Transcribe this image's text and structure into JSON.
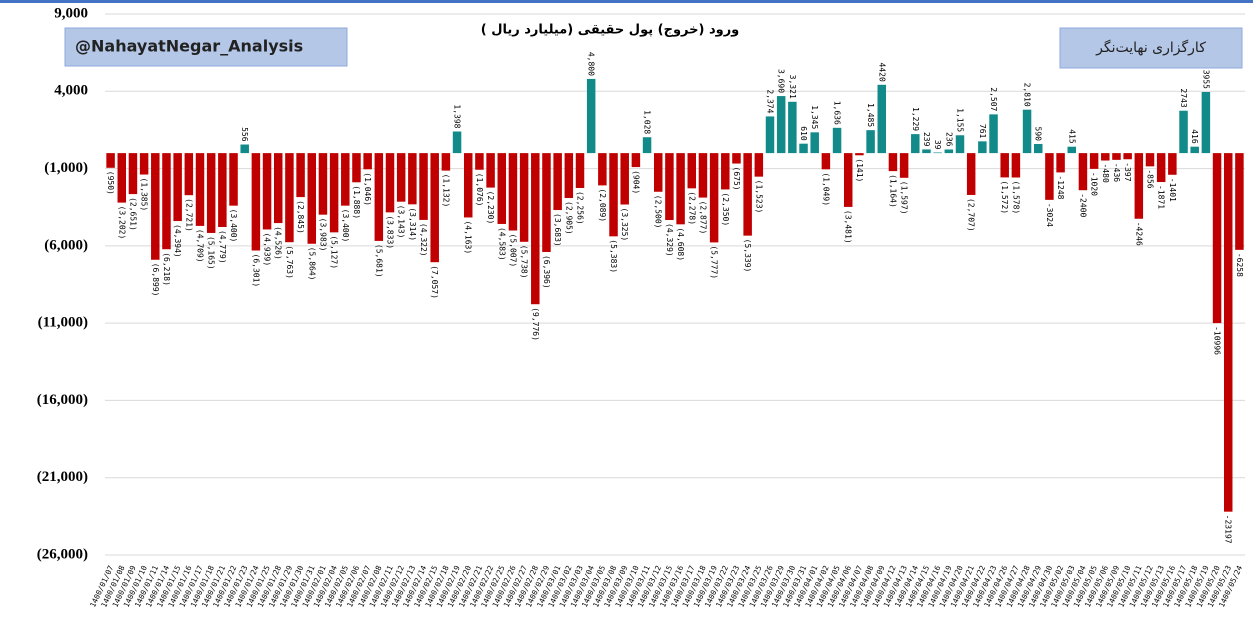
{
  "chart_data": {
    "type": "bar",
    "title": "ورود (خروج) پول حقیقی (میلیارد ریال )",
    "watermark_left": "@NahayatNegar_Analysis",
    "watermark_right": "کارگزاری نهایت‌نگر",
    "positive_color": "#138a8a",
    "negative_color": "#c00000",
    "grid": true,
    "ylim": [
      -26000,
      9000
    ],
    "yticks": [
      {
        "value": 9000,
        "label": "9,000"
      },
      {
        "value": 4000,
        "label": "4,000"
      },
      {
        "value": -1000,
        "label": "(1,000)"
      },
      {
        "value": -6000,
        "label": "(6,000)"
      },
      {
        "value": -11000,
        "label": "(11,000)"
      },
      {
        "value": -16000,
        "label": "(16,000)"
      },
      {
        "value": -21000,
        "label": "(21,000)"
      },
      {
        "value": -26000,
        "label": "(26,000)"
      }
    ],
    "categories": [
      "1400/01/07",
      "1400/01/08",
      "1400/01/09",
      "1400/01/10",
      "1400/01/11",
      "1400/01/14",
      "1400/01/15",
      "1400/01/16",
      "1400/01/17",
      "1400/01/18",
      "1400/01/21",
      "1400/01/22",
      "1400/01/23",
      "1400/01/24",
      "1400/01/25",
      "1400/01/28",
      "1400/01/29",
      "1400/01/30",
      "1400/01/31",
      "1400/02/01",
      "1400/02/04",
      "1400/02/05",
      "1400/02/06",
      "1400/02/07",
      "1400/02/08",
      "1400/02/11",
      "1400/02/12",
      "1400/02/13",
      "1400/02/14",
      "1400/02/15",
      "1400/02/18",
      "1400/02/19",
      "1400/02/20",
      "1400/02/21",
      "1400/02/22",
      "1400/02/25",
      "1400/02/26",
      "1400/02/27",
      "1400/02/28",
      "1400/02/29",
      "1400/03/01",
      "1400/03/02",
      "1400/03/03",
      "1400/03/04",
      "1400/03/05",
      "1400/03/08",
      "1400/03/09",
      "1400/03/10",
      "1400/03/11",
      "1400/03/12",
      "1400/03/15",
      "1400/03/16",
      "1400/03/17",
      "1400/03/18",
      "1400/03/19",
      "1400/03/22",
      "1400/03/23",
      "1400/03/24",
      "1400/03/25",
      "1400/03/26",
      "1400/03/29",
      "1400/03/30",
      "1400/03/31",
      "1400/04/01",
      "1400/04/02",
      "1400/04/05",
      "1400/04/06",
      "1400/04/07",
      "1400/04/08",
      "1400/04/09",
      "1400/04/12",
      "1400/04/13",
      "1400/04/14",
      "1400/04/15",
      "1400/04/16",
      "1400/04/19",
      "1400/04/20",
      "1400/04/21",
      "1400/04/22",
      "1400/04/23",
      "1400/04/26",
      "1400/04/27",
      "1400/04/28",
      "1400/04/29",
      "1400/04/30",
      "1400/05/02",
      "1400/05/03",
      "1400/05/04",
      "1400/05/05",
      "1400/05/06",
      "1400/05/09",
      "1400/05/10",
      "1400/05/11",
      "1400/05/12",
      "1400/05/13",
      "1400/05/16",
      "1400/05/17",
      "1400/05/18",
      "1400/05/19",
      "1400/05/20",
      "1400/05/23",
      "1400/05/24"
    ],
    "values": [
      -950,
      -3202,
      -2651,
      -1385,
      -6899,
      -6218,
      -4394,
      -2721,
      -4709,
      -5165,
      -4779,
      -3400,
      556,
      -6301,
      -4939,
      -4526,
      -5763,
      -2845,
      -5864,
      -3983,
      -5127,
      -3400,
      -1888,
      -1046,
      -5681,
      -3833,
      -3143,
      -3314,
      -4322,
      -7057,
      -1132,
      1398,
      -4163,
      -1076,
      -2230,
      -4583,
      -5007,
      -5738,
      -9776,
      -6396,
      -3683,
      -2905,
      -2256,
      4800,
      -2089,
      -5383,
      -3325,
      -904,
      1028,
      -2500,
      -4329,
      -4608,
      -2278,
      -2877,
      -5777,
      -2350,
      -675,
      -5339,
      -1523,
      2374,
      3690,
      3321,
      610,
      1345,
      -1049,
      1636,
      -3481,
      -141,
      1485,
      4420,
      -1164,
      -1597,
      1229,
      239,
      39,
      236,
      1155,
      -2707,
      761,
      2507,
      -1572,
      -1578,
      2810,
      590,
      -3024,
      -1248,
      415,
      -2400,
      -1020,
      -480,
      -436,
      -397,
      -4246,
      -856,
      -1871,
      -1401,
      2743,
      416,
      3955,
      -10996,
      -23197,
      -6258
    ],
    "value_labels": [
      "(950)",
      "(3,202)",
      "(2,651)",
      "(1,385)",
      "(6,899)",
      "(6,218)",
      "(4,394)",
      "(2,721)",
      "(4,709)",
      "(5,165)",
      "(4,779)",
      "(3,400)",
      "556",
      "(6,301)",
      "(4,939)",
      "(4,526)",
      "(5,763)",
      "(2,845)",
      "(5,864)",
      "(3,983)",
      "(5,127)",
      "(3,400)",
      "(1,888)",
      "(1,046)",
      "(5,681)",
      "(3,833)",
      "(3,143)",
      "(3,314)",
      "(4,322)",
      "(7,057)",
      "(1,132)",
      "1,398",
      "(4,163)",
      "(1,076)",
      "(2,230)",
      "(4,583)",
      "(5,007)",
      "(5,738)",
      "(9,776)",
      "(6,396)",
      "(3,683)",
      "(2,905)",
      "(2,256)",
      "4,800",
      "(2,089)",
      "(5,383)",
      "(3,325)",
      "(904)",
      "1,028",
      "(2,500)",
      "(4,329)",
      "(4,608)",
      "(2,278)",
      "(2,877)",
      "(5,777)",
      "(2,350)",
      "(675)",
      "(5,339)",
      "(1,523)",
      "2,374",
      "3,690",
      "3,321",
      "610",
      "1,345",
      "(1,049)",
      "1,636",
      "(3,481)",
      "(141)",
      "1,485",
      "4420",
      "(1,164)",
      "(1,597)",
      "1,229",
      "239",
      "39",
      "236",
      "1,155",
      "(2,707)",
      "761",
      "2,507",
      "(1,572)",
      "(1,578)",
      "2,810",
      "590",
      "-3024",
      "-1248",
      "415",
      "-2400",
      "-1020",
      "-480",
      "-436",
      "-397",
      "-4246",
      "-856",
      "-1871",
      "-1401",
      "2743",
      "416",
      "3955",
      "-10996",
      "-23197",
      "-6258"
    ]
  }
}
